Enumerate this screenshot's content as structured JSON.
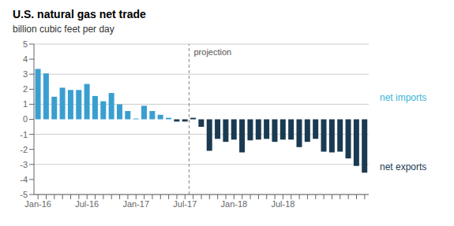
{
  "chart_data": {
    "type": "bar",
    "title": "U.S. natural gas net trade",
    "subtitle": "billion cubic feet per day",
    "categories": [
      "Jan-16",
      null,
      null,
      null,
      null,
      null,
      "Jul-16",
      null,
      null,
      null,
      null,
      null,
      "Jan-17",
      null,
      null,
      null,
      null,
      null,
      "Jul-17",
      null,
      null,
      null,
      null,
      null,
      "Jan-18",
      null,
      null,
      null,
      null,
      null,
      "Jul-18",
      null,
      null,
      null,
      null,
      null,
      null,
      null,
      null,
      null,
      null
    ],
    "values": [
      3.35,
      3.05,
      1.5,
      2.1,
      1.95,
      1.95,
      2.35,
      1.55,
      1.2,
      1.75,
      1.0,
      0.55,
      0.05,
      0.9,
      0.55,
      0.3,
      0.1,
      -0.15,
      -0.15,
      0.1,
      -0.5,
      -2.1,
      -1.3,
      -1.5,
      -1.35,
      -2.2,
      -1.4,
      -1.35,
      -1.3,
      -1.5,
      -1.35,
      -1.35,
      -1.85,
      -1.5,
      -1.3,
      -2.15,
      -2.2,
      -2.15,
      -2.6,
      -3.1,
      -3.55
    ],
    "colors": [
      "#3a9fd0",
      "#3a9fd0",
      "#3a9fd0",
      "#3a9fd0",
      "#3a9fd0",
      "#3a9fd0",
      "#3a9fd0",
      "#3a9fd0",
      "#3a9fd0",
      "#3a9fd0",
      "#3a9fd0",
      "#3a9fd0",
      "#3a9fd0",
      "#3a9fd0",
      "#3a9fd0",
      "#3a9fd0",
      "#3a9fd0",
      "#1a3a52",
      "#1a3a52",
      "#1a3a52",
      "#1a3a52",
      "#1a3a52",
      "#1a3a52",
      "#1a3a52",
      "#1a3a52",
      "#1a3a52",
      "#1a3a52",
      "#1a3a52",
      "#1a3a52",
      "#1a3a52",
      "#1a3a52",
      "#1a3a52",
      "#1a3a52",
      "#1a3a52",
      "#1a3a52",
      "#1a3a52",
      "#1a3a52",
      "#1a3a52",
      "#1a3a52",
      "#1a3a52",
      "#1a3a52"
    ],
    "ylim": [
      -5,
      5
    ],
    "yticks": [
      -5,
      -4,
      -3,
      -2,
      -1,
      0,
      1,
      2,
      3,
      4,
      5
    ],
    "grid": true,
    "annotations": [
      {
        "text": "projection",
        "x": 19
      },
      {
        "text": "net imports",
        "color": "#3ab5d8"
      },
      {
        "text": "net exports",
        "color": "#1a3a52"
      }
    ]
  }
}
